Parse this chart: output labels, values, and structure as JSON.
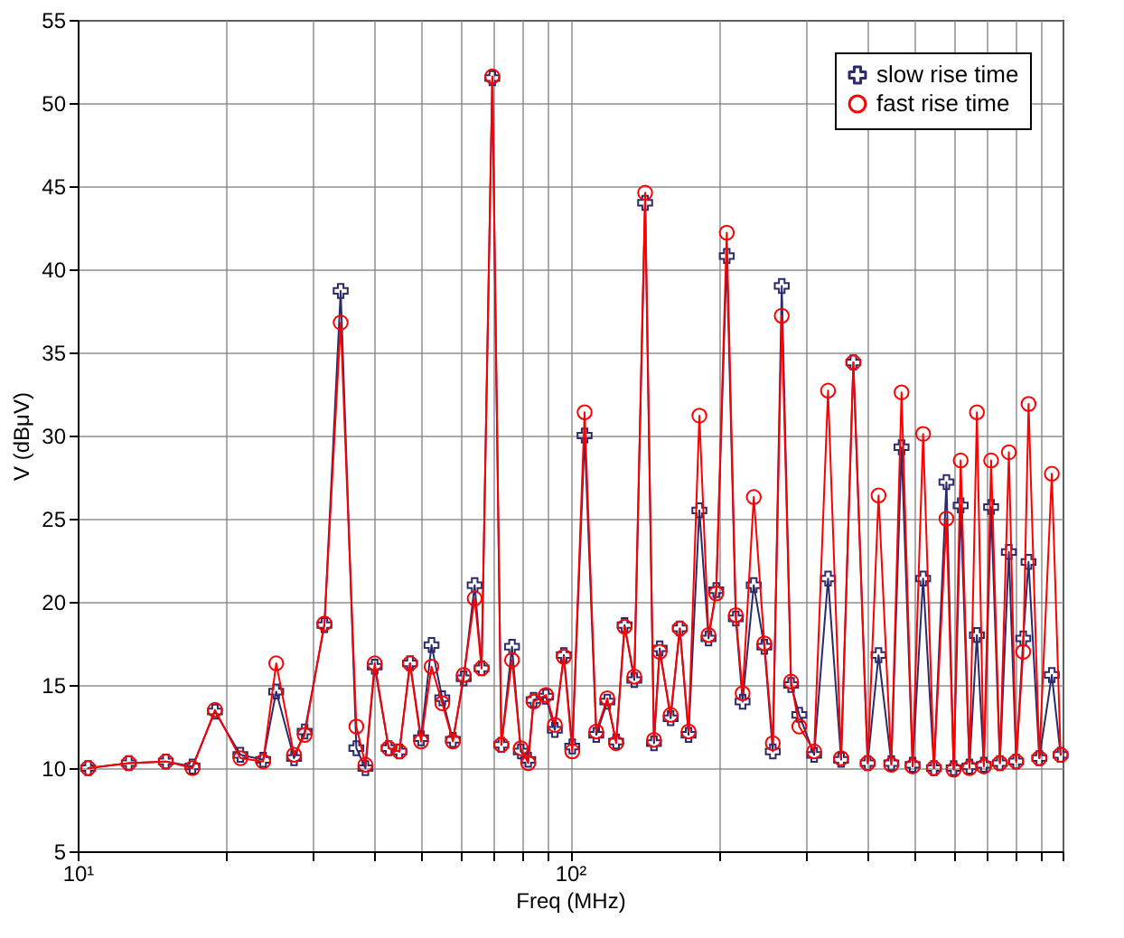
{
  "chart_data": {
    "type": "line",
    "xlabel": "Freq (MHz)",
    "ylabel": "V (dBμV)",
    "log": "x",
    "grid": true,
    "legend": "top right",
    "xlim": [
      10,
      1000
    ],
    "ylim": [
      5,
      55
    ],
    "xticks": [
      {
        "value": 10,
        "label": "10¹"
      },
      {
        "value": 20,
        "label": null
      },
      {
        "value": 30,
        "label": null
      },
      {
        "value": 40,
        "label": null
      },
      {
        "value": 50,
        "label": null
      },
      {
        "value": 60,
        "label": null
      },
      {
        "value": 70,
        "label": null
      },
      {
        "value": 80,
        "label": null
      },
      {
        "value": 90,
        "label": null
      },
      {
        "value": 100,
        "label": "10²"
      },
      {
        "value": 200,
        "label": null
      },
      {
        "value": 300,
        "label": null
      },
      {
        "value": 400,
        "label": null
      },
      {
        "value": 500,
        "label": null
      },
      {
        "value": 600,
        "label": null
      },
      {
        "value": 700,
        "label": null
      },
      {
        "value": 800,
        "label": null
      },
      {
        "value": 900,
        "label": null
      },
      {
        "value": 1000,
        "label": null
      }
    ],
    "yticks": [
      5,
      10,
      15,
      20,
      25,
      30,
      35,
      40,
      45,
      50,
      55
    ],
    "x": [
      10.5,
      12.7,
      15.1,
      17.1,
      19.0,
      21.4,
      23.8,
      25.3,
      27.5,
      28.9,
      31.7,
      34.2,
      36.8,
      38.4,
      40.1,
      42.8,
      45.0,
      47.3,
      49.8,
      52.3,
      55.0,
      57.8,
      60.8,
      64.0,
      66.1,
      69.5,
      72.5,
      76.2,
      79.4,
      82.2,
      84.3,
      89.3,
      93.1,
      97.1,
      101,
      107,
      113,
      119,
      124,
      129,
      135,
      142,
      148,
      152,
      160,
      167,
      174,
      183,
      191,
      198,
      208,
      217,
      224,
      236,
      248,
      258,
      269,
      281,
      292,
      313,
      334,
      355,
      376,
      402,
      423,
      449,
      471,
      496,
      521,
      548,
      581,
      601,
      621,
      647,
      670,
      692,
      716,
      746,
      778,
      805,
      832,
      853,
      897,
      951,
      991
    ],
    "series": [
      {
        "name": "slow rise time",
        "color": "#2b2b6b",
        "marker": "cross",
        "values": [
          10.0,
          10.3,
          10.4,
          10.1,
          13.4,
          10.8,
          10.5,
          14.6,
          10.6,
          12.2,
          18.6,
          38.7,
          11.2,
          10.0,
          16.1,
          11.2,
          11.0,
          16.3,
          11.8,
          17.4,
          14.2,
          11.7,
          15.4,
          21.0,
          16.0,
          51.5,
          11.4,
          17.3,
          11.0,
          10.5,
          14.1,
          14.3,
          12.3,
          16.8,
          11.3,
          30.0,
          12.0,
          14.0,
          11.6,
          18.6,
          15.3,
          44.0,
          11.5,
          17.2,
          13.0,
          18.4,
          12.0,
          25.5,
          17.8,
          20.7,
          40.8,
          19.0,
          14.0,
          21.0,
          17.3,
          11.0,
          39.0,
          15.0,
          13.2,
          10.8,
          21.4,
          10.5,
          34.4,
          10.3,
          16.8,
          10.3,
          29.3,
          10.2,
          21.4,
          10.0,
          27.2,
          10.0,
          25.8,
          10.1,
          18.0,
          10.2,
          25.7,
          10.3,
          23.0,
          10.4,
          17.8,
          22.4,
          10.6,
          15.6,
          10.8
        ]
      },
      {
        "name": "fast rise time",
        "color": "#ff0000",
        "marker": "circle",
        "values": [
          10.0,
          10.3,
          10.4,
          10.0,
          13.5,
          10.6,
          10.4,
          16.3,
          10.8,
          12.0,
          18.7,
          36.8,
          12.5,
          10.2,
          16.3,
          11.2,
          11.0,
          16.3,
          11.6,
          16.1,
          13.9,
          11.6,
          15.6,
          20.2,
          16.0,
          51.6,
          11.4,
          16.5,
          11.2,
          10.3,
          14.0,
          14.4,
          12.6,
          16.7,
          11.0,
          31.4,
          12.2,
          14.2,
          11.5,
          18.5,
          15.5,
          44.6,
          11.7,
          17.0,
          13.2,
          18.4,
          12.2,
          31.2,
          18.0,
          20.5,
          42.2,
          19.2,
          14.5,
          26.3,
          17.5,
          11.5,
          37.2,
          15.2,
          12.5,
          11.0,
          32.7,
          10.6,
          34.4,
          10.3,
          26.4,
          10.2,
          32.6,
          10.1,
          30.1,
          10.0,
          25.0,
          9.9,
          28.5,
          10.0,
          31.4,
          10.1,
          28.5,
          10.3,
          29.0,
          10.4,
          17.0,
          31.9,
          10.6,
          27.7,
          10.8
        ]
      }
    ]
  }
}
